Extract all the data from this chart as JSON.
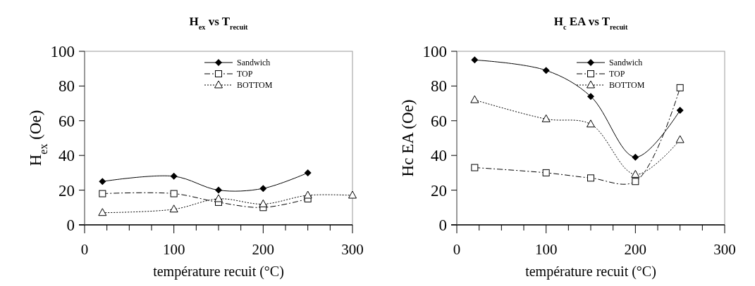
{
  "chart_data": [
    {
      "type": "line",
      "title": "H$_{ex}$ vs T$_{recuit}$",
      "xlabel": "température recuit (°C)",
      "ylabel": "H$_{ex}$ (Oe)",
      "xlim": [
        0,
        300
      ],
      "xticks": [
        0,
        {
          "value": 25,
          "label": null
        },
        {
          "value": 50,
          "label": null
        },
        {
          "value": 75,
          "label": null
        },
        100,
        {
          "value": 125,
          "label": null
        },
        {
          "value": 150,
          "label": null
        },
        {
          "value": 175,
          "label": null
        },
        200,
        {
          "value": 225,
          "label": null
        },
        {
          "value": 250,
          "label": null
        },
        {
          "value": 275,
          "label": null
        },
        300
      ],
      "ylim": [
        0,
        100
      ],
      "yticks": [
        0,
        20,
        40,
        60,
        80,
        100
      ],
      "grid": false,
      "legend": "top right",
      "series": [
        {
          "name": "Sandwich",
          "color": "#000000",
          "marker": "diamond",
          "line_style": "solid",
          "x": [
            20,
            100,
            150,
            200,
            250
          ],
          "values": [
            25,
            28,
            20,
            21,
            30
          ]
        },
        {
          "name": "TOP",
          "color": "#000000",
          "marker": "square",
          "line_style": "dashdot",
          "x": [
            20,
            100,
            150,
            200,
            250
          ],
          "values": [
            18,
            18,
            13,
            10,
            15
          ]
        },
        {
          "name": "BOTTOM",
          "color": "#000000",
          "marker": "triangle",
          "line_style": "dotted",
          "x": [
            20,
            100,
            150,
            200,
            250,
            300
          ],
          "values": [
            7,
            9,
            15,
            12,
            17,
            17
          ]
        }
      ]
    },
    {
      "type": "line",
      "title": "H$_{c}$ EA vs T$_{recuit}$",
      "xlabel": "température recuit (°C)",
      "ylabel": "Hc EA (Oe)",
      "xlim": [
        0,
        300
      ],
      "xticks": [
        0,
        {
          "value": 25,
          "label": null
        },
        {
          "value": 50,
          "label": null
        },
        {
          "value": 75,
          "label": null
        },
        100,
        {
          "value": 125,
          "label": null
        },
        {
          "value": 150,
          "label": null
        },
        {
          "value": 175,
          "label": null
        },
        200,
        {
          "value": 225,
          "label": null
        },
        {
          "value": 250,
          "label": null
        },
        {
          "value": 275,
          "label": null
        },
        300
      ],
      "ylim": [
        0,
        100
      ],
      "yticks": [
        0,
        20,
        40,
        60,
        80,
        100
      ],
      "grid": false,
      "legend": "top right",
      "series": [
        {
          "name": "Sandwich",
          "color": "#000000",
          "marker": "diamond",
          "line_style": "solid",
          "x": [
            20,
            100,
            150,
            200,
            250
          ],
          "values": [
            95,
            89,
            74,
            39,
            66
          ]
        },
        {
          "name": "TOP",
          "color": "#000000",
          "marker": "square",
          "line_style": "dashdot",
          "x": [
            20,
            100,
            150,
            200,
            250
          ],
          "values": [
            33,
            30,
            27,
            25,
            79
          ]
        },
        {
          "name": "BOTTOM",
          "color": "#000000",
          "marker": "triangle",
          "line_style": "dotted",
          "x": [
            20,
            100,
            150,
            200,
            250
          ],
          "values": [
            72,
            61,
            58,
            29,
            49
          ]
        }
      ]
    }
  ]
}
